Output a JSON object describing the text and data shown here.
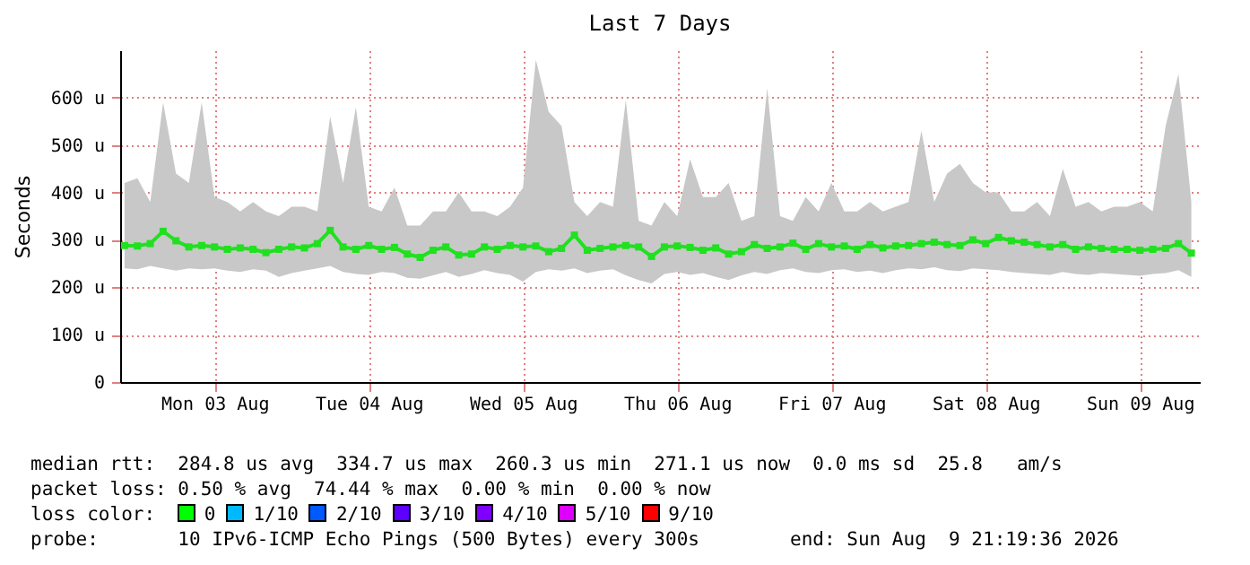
{
  "chart_data": {
    "type": "line",
    "title": "Last 7 Days",
    "ylabel": "Seconds",
    "xlim": [
      "2026-08-02T21:19",
      "2026-08-09T21:19"
    ],
    "xticks": [
      {
        "value": "2026-08-03T12:00",
        "label": "Mon 03 Aug"
      },
      {
        "value": "2026-08-04T12:00",
        "label": "Tue 04 Aug"
      },
      {
        "value": "2026-08-05T12:00",
        "label": "Wed 05 Aug"
      },
      {
        "value": "2026-08-06T12:00",
        "label": "Thu 06 Aug"
      },
      {
        "value": "2026-08-07T12:00",
        "label": "Fri 07 Aug"
      },
      {
        "value": "2026-08-08T12:00",
        "label": "Sat 08 Aug"
      },
      {
        "value": "2026-08-09T12:00",
        "label": "Sun 09 Aug"
      }
    ],
    "ylim": [
      0,
      700
    ],
    "yticks": [
      {
        "value": 0,
        "label": "0"
      },
      {
        "value": 100,
        "label": "100 u"
      },
      {
        "value": 200,
        "label": "200 u"
      },
      {
        "value": 300,
        "label": "300 u"
      },
      {
        "value": 400,
        "label": "400 u"
      },
      {
        "value": 500,
        "label": "500 u"
      },
      {
        "value": 600,
        "label": "600 u"
      }
    ],
    "grid": true,
    "legend": false,
    "marker": "square",
    "line_style": "solid",
    "x": [
      "2026-08-02T22:00",
      "2026-08-03T00:00",
      "2026-08-03T02:00",
      "2026-08-03T04:00",
      "2026-08-03T06:00",
      "2026-08-03T08:00",
      "2026-08-03T10:00",
      "2026-08-03T12:00",
      "2026-08-03T14:00",
      "2026-08-03T16:00",
      "2026-08-03T18:00",
      "2026-08-03T20:00",
      "2026-08-03T22:00",
      "2026-08-04T00:00",
      "2026-08-04T02:00",
      "2026-08-04T04:00",
      "2026-08-04T06:00",
      "2026-08-04T08:00",
      "2026-08-04T10:00",
      "2026-08-04T12:00",
      "2026-08-04T14:00",
      "2026-08-04T16:00",
      "2026-08-04T18:00",
      "2026-08-04T20:00",
      "2026-08-04T22:00",
      "2026-08-05T00:00",
      "2026-08-05T02:00",
      "2026-08-05T04:00",
      "2026-08-05T06:00",
      "2026-08-05T08:00",
      "2026-08-05T10:00",
      "2026-08-05T12:00",
      "2026-08-05T14:00",
      "2026-08-05T16:00",
      "2026-08-05T18:00",
      "2026-08-05T20:00",
      "2026-08-05T22:00",
      "2026-08-06T00:00",
      "2026-08-06T02:00",
      "2026-08-06T04:00",
      "2026-08-06T06:00",
      "2026-08-06T08:00",
      "2026-08-06T10:00",
      "2026-08-06T12:00",
      "2026-08-06T14:00",
      "2026-08-06T16:00",
      "2026-08-06T18:00",
      "2026-08-06T20:00",
      "2026-08-06T22:00",
      "2026-08-07T00:00",
      "2026-08-07T02:00",
      "2026-08-07T04:00",
      "2026-08-07T06:00",
      "2026-08-07T08:00",
      "2026-08-07T10:00",
      "2026-08-07T12:00",
      "2026-08-07T14:00",
      "2026-08-07T16:00",
      "2026-08-07T18:00",
      "2026-08-07T20:00",
      "2026-08-07T22:00",
      "2026-08-08T00:00",
      "2026-08-08T02:00",
      "2026-08-08T04:00",
      "2026-08-08T06:00",
      "2026-08-08T08:00",
      "2026-08-08T10:00",
      "2026-08-08T12:00",
      "2026-08-08T14:00",
      "2026-08-08T16:00",
      "2026-08-08T18:00",
      "2026-08-08T20:00",
      "2026-08-08T22:00",
      "2026-08-09T00:00",
      "2026-08-09T02:00",
      "2026-08-09T04:00",
      "2026-08-09T06:00",
      "2026-08-09T08:00",
      "2026-08-09T10:00",
      "2026-08-09T12:00",
      "2026-08-09T14:00",
      "2026-08-09T16:00",
      "2026-08-09T18:00",
      "2026-08-09T20:00"
    ],
    "series": [
      {
        "color": "#20e020",
        "values": [
          288,
          287,
          292,
          318,
          298,
          285,
          288,
          285,
          280,
          283,
          280,
          273,
          280,
          285,
          283,
          292,
          320,
          285,
          280,
          288,
          280,
          284,
          270,
          263,
          278,
          285,
          268,
          270,
          285,
          280,
          288,
          285,
          287,
          275,
          282,
          310,
          278,
          282,
          285,
          288,
          285,
          265,
          285,
          287,
          284,
          278,
          283,
          270,
          275,
          290,
          282,
          285,
          293,
          280,
          292,
          285,
          287,
          280,
          290,
          283,
          287,
          288,
          292,
          295,
          290,
          288,
          300,
          292,
          305,
          298,
          295,
          290,
          285,
          290,
          280,
          285,
          282,
          280,
          280,
          278,
          280,
          282,
          292,
          272
        ],
        "lower": [
          240,
          238,
          245,
          240,
          235,
          240,
          238,
          240,
          235,
          232,
          238,
          235,
          222,
          230,
          235,
          240,
          245,
          232,
          228,
          226,
          232,
          230,
          220,
          218,
          225,
          232,
          222,
          228,
          236,
          230,
          226,
          212,
          232,
          238,
          235,
          240,
          230,
          235,
          238,
          225,
          215,
          208,
          228,
          232,
          226,
          230,
          222,
          215,
          225,
          232,
          228,
          236,
          240,
          232,
          230,
          236,
          238,
          232,
          235,
          230,
          236,
          240,
          238,
          242,
          236,
          234,
          240,
          238,
          236,
          232,
          230,
          228,
          226,
          232,
          228,
          226,
          230,
          228,
          226,
          224,
          228,
          230,
          236,
          222
        ],
        "upper": [
          420,
          430,
          380,
          590,
          440,
          420,
          590,
          390,
          380,
          360,
          380,
          360,
          350,
          370,
          370,
          360,
          560,
          420,
          580,
          370,
          360,
          410,
          330,
          330,
          360,
          360,
          400,
          360,
          360,
          350,
          370,
          410,
          680,
          570,
          540,
          380,
          350,
          380,
          370,
          595,
          340,
          330,
          380,
          350,
          470,
          390,
          390,
          420,
          340,
          350,
          620,
          350,
          340,
          390,
          360,
          420,
          360,
          360,
          380,
          360,
          370,
          380,
          530,
          380,
          440,
          460,
          420,
          400,
          400,
          360,
          360,
          380,
          350,
          450,
          370,
          380,
          360,
          370,
          370,
          380,
          360,
          540,
          650,
          380
        ]
      }
    ],
    "annotations": [
      "median rtt:  284.8 us avg  334.7 us max  260.3 us min  271.1 us now  0.0 ms sd  25.8   am/s",
      "packet loss: 0.50 % avg  74.44 % max  0.00 % min  0.00 % now",
      "loss color:  0  1/10  2/10  3/10  4/10  5/10  9/10",
      "probe:       10 IPv6-ICMP Echo Pings (500 Bytes) every 300s        end: Sun Aug  9 21:19:36 2026"
    ]
  }
}
